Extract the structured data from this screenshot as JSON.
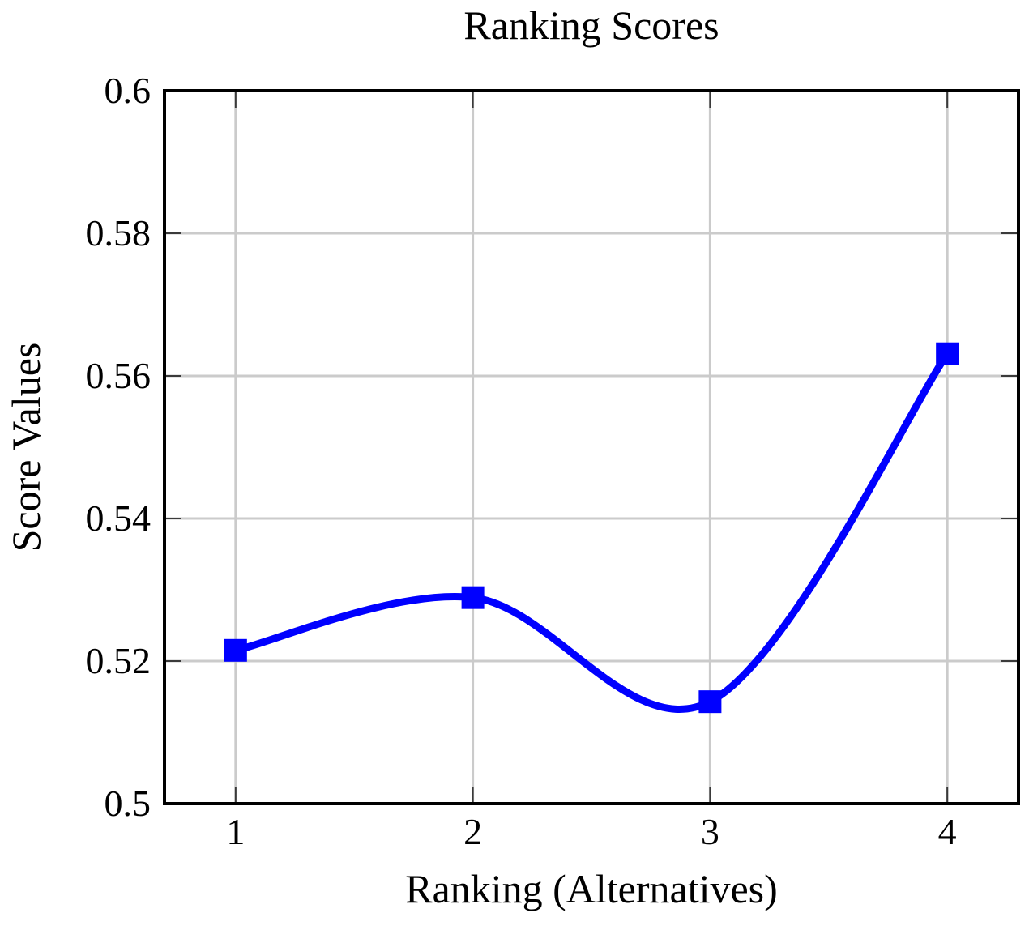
{
  "chart_data": {
    "type": "line",
    "title": "Ranking Scores",
    "xlabel": "Ranking (Alternatives)",
    "ylabel": "Score Values",
    "x": [
      1,
      2,
      3,
      4
    ],
    "y": [
      0.5215,
      0.5289,
      0.5143,
      0.5631
    ],
    "xlim": [
      0.7,
      4.3
    ],
    "ylim": [
      0.5,
      0.6
    ],
    "xticks": [
      1,
      2,
      3,
      4
    ],
    "xtick_labels": [
      "1",
      "2",
      "3",
      "4"
    ],
    "yticks": [
      0.5,
      0.52,
      0.54,
      0.56,
      0.58,
      0.6
    ],
    "ytick_labels": [
      "0.5",
      "0.52",
      "0.54",
      "0.56",
      "0.58",
      "0.6"
    ],
    "grid": true,
    "smooth": true,
    "legend": null,
    "line_color": "#0000ff",
    "marker": "square",
    "marker_color": "#0000ff",
    "grid_color": "#cbcbcb",
    "tick_color": "#3a3a3a",
    "axis_color": "#000000",
    "background": "#ffffff"
  }
}
